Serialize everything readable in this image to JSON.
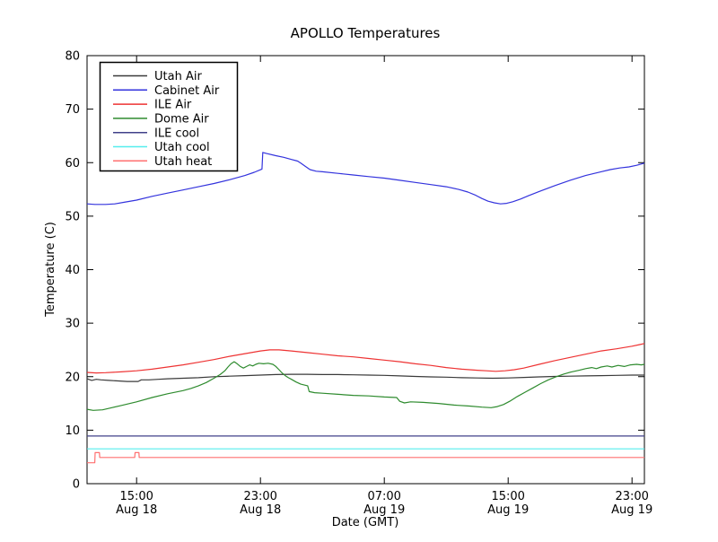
{
  "figure": {
    "background": "#ffffff",
    "frame_color": "#000000"
  },
  "chart_data": {
    "type": "line",
    "title": "APOLLO Temperatures",
    "xlabel": "Date (GMT)",
    "ylabel": "Temperature (C)",
    "xlim_hours_since_aug18_0000": [
      11.8,
      47.8
    ],
    "ylim": [
      0,
      80
    ],
    "grid": false,
    "legend_position": "upper-left",
    "yticks": [
      0,
      10,
      20,
      30,
      40,
      50,
      60,
      70,
      80
    ],
    "xticks": [
      {
        "t": 15,
        "line1": "15:00",
        "line2": "Aug 18"
      },
      {
        "t": 23,
        "line1": "23:00",
        "line2": "Aug 18"
      },
      {
        "t": 31,
        "line1": "07:00",
        "line2": "Aug 19"
      },
      {
        "t": 39,
        "line1": "15:00",
        "line2": "Aug 19"
      },
      {
        "t": 47,
        "line1": "23:00",
        "line2": "Aug 19"
      }
    ],
    "series": [
      {
        "name": "Utah Air",
        "color": "#3a3a3a",
        "points": [
          [
            11.8,
            19.6
          ],
          [
            12.1,
            19.3
          ],
          [
            12.4,
            19.5
          ],
          [
            12.7,
            19.4
          ],
          [
            13.2,
            19.3
          ],
          [
            13.8,
            19.2
          ],
          [
            14.4,
            19.1
          ],
          [
            15.1,
            19.1
          ],
          [
            15.3,
            19.4
          ],
          [
            15.8,
            19.4
          ],
          [
            16.4,
            19.5
          ],
          [
            17,
            19.6
          ],
          [
            18,
            19.7
          ],
          [
            19,
            19.8
          ],
          [
            20,
            20.0
          ],
          [
            21,
            20.1
          ],
          [
            22,
            20.2
          ],
          [
            23,
            20.3
          ],
          [
            24,
            20.4
          ],
          [
            25,
            20.45
          ],
          [
            26,
            20.45
          ],
          [
            27,
            20.4
          ],
          [
            28,
            20.4
          ],
          [
            29,
            20.35
          ],
          [
            30,
            20.3
          ],
          [
            31,
            20.25
          ],
          [
            32,
            20.15
          ],
          [
            33,
            20.05
          ],
          [
            34,
            19.95
          ],
          [
            35,
            19.9
          ],
          [
            36,
            19.8
          ],
          [
            37,
            19.75
          ],
          [
            38,
            19.7
          ],
          [
            39,
            19.75
          ],
          [
            40,
            19.85
          ],
          [
            41,
            19.95
          ],
          [
            42,
            20.05
          ],
          [
            43,
            20.1
          ],
          [
            44,
            20.15
          ],
          [
            45,
            20.2
          ],
          [
            46,
            20.25
          ],
          [
            47,
            20.3
          ],
          [
            47.8,
            20.3
          ]
        ]
      },
      {
        "name": "Cabinet Air",
        "color": "#3333dd",
        "points": [
          [
            11.8,
            52.3
          ],
          [
            12.3,
            52.2
          ],
          [
            13.0,
            52.2
          ],
          [
            13.6,
            52.3
          ],
          [
            14.2,
            52.6
          ],
          [
            15,
            53.0
          ],
          [
            16,
            53.7
          ],
          [
            17,
            54.3
          ],
          [
            18,
            54.9
          ],
          [
            19,
            55.5
          ],
          [
            20,
            56.1
          ],
          [
            21,
            56.8
          ],
          [
            22,
            57.6
          ],
          [
            22.6,
            58.2
          ],
          [
            23.1,
            58.8
          ],
          [
            23.15,
            61.9
          ],
          [
            23.4,
            61.7
          ],
          [
            24,
            61.3
          ],
          [
            24.5,
            61.0
          ],
          [
            25,
            60.6
          ],
          [
            25.4,
            60.3
          ],
          [
            25.6,
            59.9
          ],
          [
            25.9,
            59.3
          ],
          [
            26.2,
            58.7
          ],
          [
            26.6,
            58.4
          ],
          [
            27,
            58.3
          ],
          [
            28,
            58.0
          ],
          [
            29,
            57.7
          ],
          [
            30,
            57.4
          ],
          [
            31,
            57.1
          ],
          [
            32,
            56.7
          ],
          [
            33,
            56.3
          ],
          [
            34,
            55.9
          ],
          [
            35,
            55.5
          ],
          [
            35.8,
            55.0
          ],
          [
            36.4,
            54.5
          ],
          [
            36.9,
            53.9
          ],
          [
            37.3,
            53.3
          ],
          [
            37.7,
            52.8
          ],
          [
            38.1,
            52.5
          ],
          [
            38.5,
            52.3
          ],
          [
            38.9,
            52.4
          ],
          [
            39.3,
            52.7
          ],
          [
            39.8,
            53.2
          ],
          [
            40.3,
            53.8
          ],
          [
            41,
            54.6
          ],
          [
            42,
            55.7
          ],
          [
            43,
            56.7
          ],
          [
            44,
            57.6
          ],
          [
            45,
            58.3
          ],
          [
            45.6,
            58.7
          ],
          [
            46.2,
            59.0
          ],
          [
            46.8,
            59.2
          ],
          [
            47.3,
            59.5
          ],
          [
            47.8,
            59.9
          ]
        ]
      },
      {
        "name": "ILE Air",
        "color": "#ee3333",
        "points": [
          [
            11.8,
            20.8
          ],
          [
            12.4,
            20.7
          ],
          [
            13,
            20.75
          ],
          [
            14,
            20.9
          ],
          [
            15,
            21.1
          ],
          [
            16,
            21.4
          ],
          [
            17,
            21.8
          ],
          [
            18,
            22.2
          ],
          [
            19,
            22.7
          ],
          [
            20,
            23.2
          ],
          [
            21,
            23.8
          ],
          [
            22,
            24.3
          ],
          [
            23,
            24.8
          ],
          [
            23.6,
            25.0
          ],
          [
            24.2,
            25.0
          ],
          [
            25,
            24.8
          ],
          [
            26,
            24.5
          ],
          [
            27,
            24.2
          ],
          [
            28,
            23.9
          ],
          [
            29,
            23.7
          ],
          [
            30,
            23.4
          ],
          [
            31,
            23.1
          ],
          [
            32,
            22.8
          ],
          [
            33,
            22.4
          ],
          [
            34,
            22.1
          ],
          [
            35,
            21.7
          ],
          [
            36,
            21.4
          ],
          [
            37,
            21.2
          ],
          [
            37.6,
            21.1
          ],
          [
            38.2,
            21.0
          ],
          [
            38.8,
            21.1
          ],
          [
            39.4,
            21.3
          ],
          [
            40,
            21.6
          ],
          [
            41,
            22.3
          ],
          [
            42,
            23.0
          ],
          [
            43,
            23.6
          ],
          [
            44,
            24.2
          ],
          [
            45,
            24.8
          ],
          [
            46,
            25.2
          ],
          [
            47,
            25.7
          ],
          [
            47.5,
            26.0
          ],
          [
            47.8,
            26.2
          ]
        ]
      },
      {
        "name": "Dome Air",
        "color": "#2e8b2e",
        "points": [
          [
            11.8,
            13.9
          ],
          [
            12.2,
            13.7
          ],
          [
            12.8,
            13.8
          ],
          [
            13.4,
            14.2
          ],
          [
            14,
            14.6
          ],
          [
            15,
            15.3
          ],
          [
            16,
            16.1
          ],
          [
            17,
            16.8
          ],
          [
            18,
            17.4
          ],
          [
            18.5,
            17.8
          ],
          [
            19,
            18.3
          ],
          [
            19.5,
            18.9
          ],
          [
            20,
            19.7
          ],
          [
            20.4,
            20.4
          ],
          [
            20.7,
            21.1
          ],
          [
            20.9,
            21.8
          ],
          [
            21.1,
            22.4
          ],
          [
            21.3,
            22.8
          ],
          [
            21.5,
            22.4
          ],
          [
            21.7,
            21.9
          ],
          [
            21.9,
            21.6
          ],
          [
            22.1,
            21.9
          ],
          [
            22.3,
            22.2
          ],
          [
            22.5,
            22.0
          ],
          [
            22.7,
            22.3
          ],
          [
            22.9,
            22.5
          ],
          [
            23.2,
            22.4
          ],
          [
            23.5,
            22.5
          ],
          [
            23.8,
            22.3
          ],
          [
            24.0,
            21.9
          ],
          [
            24.2,
            21.3
          ],
          [
            24.4,
            20.7
          ],
          [
            24.6,
            20.2
          ],
          [
            24.8,
            19.8
          ],
          [
            25.0,
            19.5
          ],
          [
            25.3,
            19.0
          ],
          [
            25.6,
            18.6
          ],
          [
            25.9,
            18.4
          ],
          [
            26.05,
            18.3
          ],
          [
            26.15,
            17.2
          ],
          [
            26.5,
            17.0
          ],
          [
            27,
            16.9
          ],
          [
            28,
            16.7
          ],
          [
            29,
            16.5
          ],
          [
            30,
            16.4
          ],
          [
            31,
            16.2
          ],
          [
            31.8,
            16.1
          ],
          [
            32.0,
            15.4
          ],
          [
            32.3,
            15.1
          ],
          [
            32.7,
            15.3
          ],
          [
            33.5,
            15.2
          ],
          [
            34.5,
            15.0
          ],
          [
            35.5,
            14.7
          ],
          [
            36.5,
            14.5
          ],
          [
            37.3,
            14.3
          ],
          [
            37.9,
            14.2
          ],
          [
            38.3,
            14.4
          ],
          [
            38.7,
            14.8
          ],
          [
            39.1,
            15.4
          ],
          [
            39.6,
            16.3
          ],
          [
            40.1,
            17.1
          ],
          [
            40.6,
            17.9
          ],
          [
            41.1,
            18.7
          ],
          [
            41.6,
            19.4
          ],
          [
            42.1,
            20.0
          ],
          [
            42.6,
            20.5
          ],
          [
            43.1,
            20.9
          ],
          [
            43.6,
            21.2
          ],
          [
            44,
            21.5
          ],
          [
            44.4,
            21.7
          ],
          [
            44.7,
            21.5
          ],
          [
            45,
            21.8
          ],
          [
            45.4,
            22.0
          ],
          [
            45.7,
            21.8
          ],
          [
            46.1,
            22.1
          ],
          [
            46.5,
            21.9
          ],
          [
            46.9,
            22.2
          ],
          [
            47.3,
            22.3
          ],
          [
            47.6,
            22.2
          ],
          [
            47.8,
            22.3
          ]
        ]
      },
      {
        "name": "ILE cool",
        "color": "#40408a",
        "points": [
          [
            11.8,
            8.9
          ],
          [
            47.8,
            8.9
          ]
        ]
      },
      {
        "name": "Utah cool",
        "color": "#55eeee",
        "points": [
          [
            11.8,
            6.5
          ],
          [
            47.8,
            6.5
          ]
        ]
      },
      {
        "name": "Utah heat",
        "color": "#ff7070",
        "points": [
          [
            11.8,
            3.9
          ],
          [
            12.3,
            3.9
          ],
          [
            12.32,
            5.8
          ],
          [
            12.6,
            5.8
          ],
          [
            12.62,
            4.9
          ],
          [
            14.88,
            4.9
          ],
          [
            14.9,
            5.8
          ],
          [
            15.15,
            5.8
          ],
          [
            15.17,
            4.9
          ],
          [
            47.8,
            4.9
          ]
        ]
      }
    ]
  }
}
